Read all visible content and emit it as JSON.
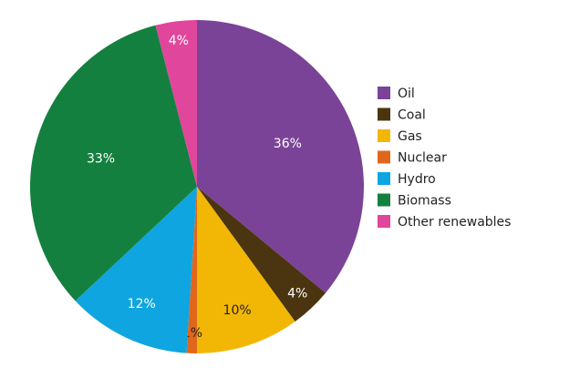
{
  "chart_data": {
    "type": "pie",
    "categories": [
      "Oil",
      "Coal",
      "Gas",
      "Nuclear",
      "Hydro",
      "Biomass",
      "Other renewables"
    ],
    "values": [
      36,
      4,
      10,
      1,
      12,
      33,
      4
    ],
    "value_labels": [
      "36%",
      "4%",
      "10%",
      "1%",
      "12%",
      "33%",
      "4%"
    ],
    "colors": [
      "#7b4397",
      "#4b3510",
      "#f2b705",
      "#e0661c",
      "#0ea5e0",
      "#14803f",
      "#e0469b"
    ],
    "legend": "right"
  }
}
